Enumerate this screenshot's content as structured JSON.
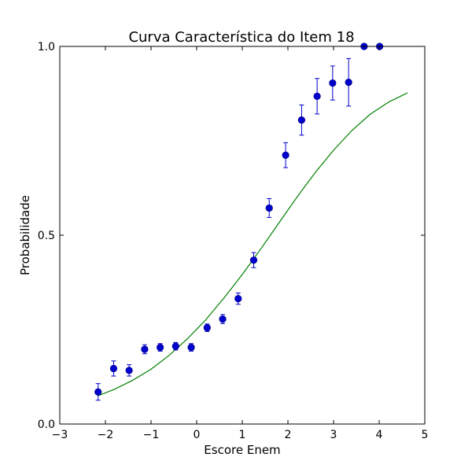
{
  "chart_data": {
    "type": "scatter",
    "title": "Curva Característica do Item 18",
    "xlabel": "Escore Enem",
    "ylabel": "Probabilidade",
    "xlim": [
      -3,
      5
    ],
    "ylim": [
      0.0,
      1.0
    ],
    "xticks": [
      -3,
      -2,
      -1,
      0,
      1,
      2,
      3,
      4,
      5
    ],
    "xtick_labels": [
      "−3",
      "−2",
      "−1",
      "0",
      "1",
      "2",
      "3",
      "4",
      "5"
    ],
    "yticks": [
      0.0,
      0.5,
      1.0
    ],
    "ytick_labels": [
      "0.0",
      "0.5",
      "1.0"
    ],
    "grid": false,
    "colors": {
      "points": "#0000cc",
      "errorbars": "#0000cc",
      "curve": "#008000"
    },
    "points": [
      {
        "x": -2.16,
        "y": 0.085,
        "err": 0.022
      },
      {
        "x": -1.82,
        "y": 0.147,
        "err": 0.02
      },
      {
        "x": -1.48,
        "y": 0.142,
        "err": 0.015
      },
      {
        "x": -1.14,
        "y": 0.198,
        "err": 0.012
      },
      {
        "x": -0.8,
        "y": 0.203,
        "err": 0.01
      },
      {
        "x": -0.46,
        "y": 0.206,
        "err": 0.01
      },
      {
        "x": -0.12,
        "y": 0.203,
        "err": 0.01
      },
      {
        "x": 0.23,
        "y": 0.255,
        "err": 0.01
      },
      {
        "x": 0.57,
        "y": 0.278,
        "err": 0.012
      },
      {
        "x": 0.91,
        "y": 0.332,
        "err": 0.015
      },
      {
        "x": 1.25,
        "y": 0.434,
        "err": 0.02
      },
      {
        "x": 1.59,
        "y": 0.572,
        "err": 0.025
      },
      {
        "x": 1.95,
        "y": 0.712,
        "err": 0.033
      },
      {
        "x": 2.3,
        "y": 0.805,
        "err": 0.04
      },
      {
        "x": 2.64,
        "y": 0.868,
        "err": 0.047
      },
      {
        "x": 2.98,
        "y": 0.903,
        "err": 0.045
      },
      {
        "x": 3.33,
        "y": 0.905,
        "err": 0.063
      },
      {
        "x": 3.67,
        "y": 1.0,
        "err": 0.0
      },
      {
        "x": 4.01,
        "y": 1.0,
        "err": 0.0
      }
    ],
    "curve": {
      "x": [
        -2.16,
        -1.8,
        -1.4,
        -1.0,
        -0.6,
        -0.2,
        0.2,
        0.6,
        1.0,
        1.4,
        1.8,
        2.2,
        2.6,
        3.0,
        3.4,
        3.8,
        4.2,
        4.62
      ],
      "y": [
        0.075,
        0.092,
        0.116,
        0.145,
        0.182,
        0.226,
        0.276,
        0.334,
        0.396,
        0.463,
        0.532,
        0.601,
        0.666,
        0.725,
        0.777,
        0.82,
        0.852,
        0.877
      ]
    }
  }
}
